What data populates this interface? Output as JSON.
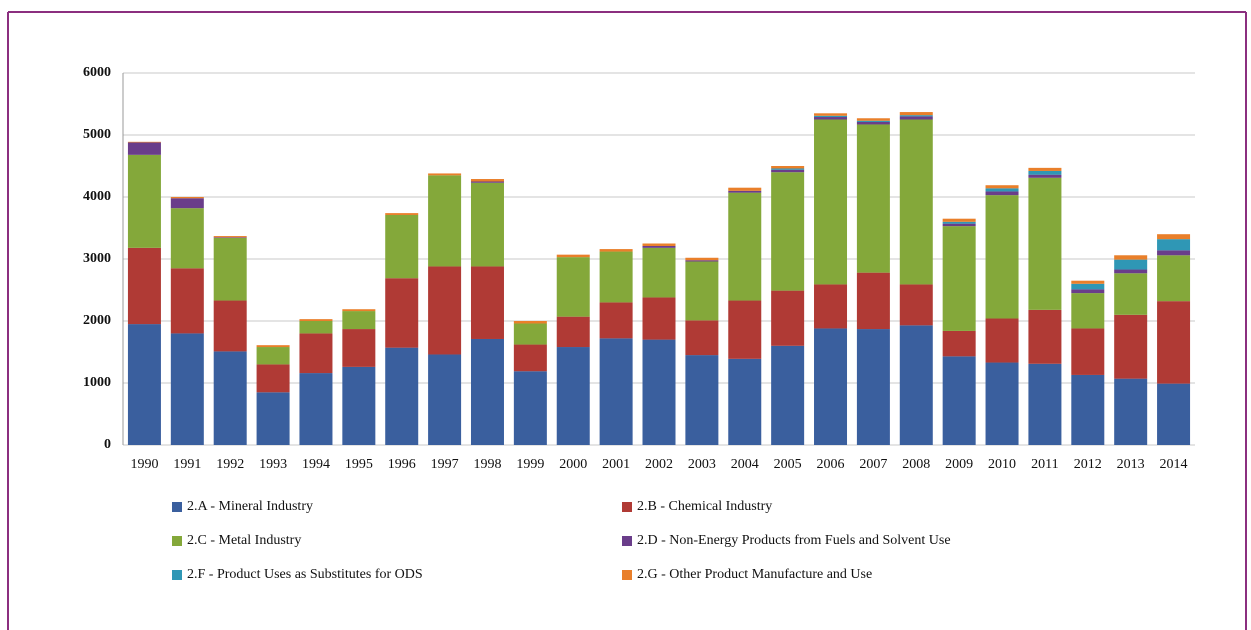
{
  "chart_data": {
    "type": "stacked_bar",
    "categories": [
      "1990",
      "1991",
      "1992",
      "1993",
      "1994",
      "1995",
      "1996",
      "1997",
      "1998",
      "1999",
      "2000",
      "2001",
      "2002",
      "2003",
      "2004",
      "2005",
      "2006",
      "2007",
      "2008",
      "2009",
      "2010",
      "2011",
      "2012",
      "2013",
      "2014"
    ],
    "series": [
      {
        "name": "2.A - Mineral Industry",
        "color": "#3a5f9e",
        "values": [
          1950,
          1800,
          1510,
          850,
          1160,
          1260,
          1570,
          1460,
          1710,
          1190,
          1580,
          1720,
          1700,
          1450,
          1390,
          1600,
          1880,
          1870,
          1930,
          1430,
          1330,
          1310,
          1130,
          1070,
          990
        ]
      },
      {
        "name": "2.B - Chemical Industry",
        "color": "#b03a35",
        "values": [
          1230,
          1050,
          820,
          450,
          640,
          610,
          1120,
          1420,
          1170,
          430,
          490,
          580,
          680,
          560,
          940,
          890,
          710,
          910,
          660,
          410,
          710,
          870,
          750,
          1030,
          1330
        ]
      },
      {
        "name": "2.C - Metal Industry",
        "color": "#84a83a",
        "values": [
          1500,
          970,
          1010,
          280,
          200,
          290,
          1020,
          1470,
          1350,
          340,
          960,
          820,
          800,
          950,
          1740,
          1910,
          2660,
          2390,
          2660,
          1690,
          1990,
          2130,
          570,
          670,
          740
        ]
      },
      {
        "name": "2.D - Non-Energy Products from Fuels and Solvent Use",
        "color": "#6a3d8a",
        "values": [
          200,
          160,
          10,
          0,
          0,
          0,
          0,
          0,
          20,
          0,
          0,
          0,
          30,
          20,
          30,
          40,
          40,
          40,
          50,
          40,
          60,
          50,
          60,
          60,
          80
        ]
      },
      {
        "name": "2.F - Product Uses as Substitutes for ODS",
        "color": "#2f97b5",
        "values": [
          0,
          0,
          0,
          0,
          0,
          0,
          0,
          0,
          0,
          0,
          0,
          0,
          0,
          0,
          0,
          20,
          20,
          20,
          20,
          30,
          50,
          60,
          90,
          160,
          180
        ]
      },
      {
        "name": "2.G - Other Product Manufacture and Use",
        "color": "#e97f2a",
        "values": [
          10,
          20,
          20,
          30,
          30,
          30,
          30,
          30,
          40,
          40,
          40,
          40,
          40,
          40,
          50,
          40,
          40,
          40,
          50,
          50,
          50,
          50,
          50,
          70,
          80
        ]
      }
    ],
    "ylim": [
      0,
      6000
    ],
    "yticks": [
      0,
      1000,
      2000,
      3000,
      4000,
      5000,
      6000
    ],
    "grid": true
  }
}
